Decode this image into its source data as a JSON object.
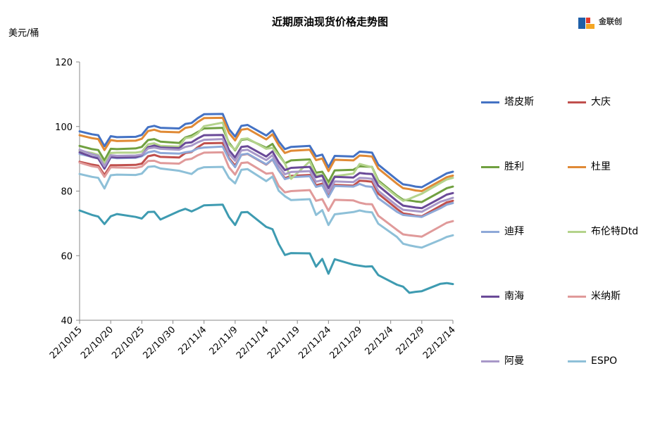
{
  "title": "近期原油现货价格走势图",
  "logo": {
    "name": "金联创"
  },
  "chart_data": {
    "type": "line",
    "title": "近期原油现货价格走势图",
    "ylabel": "美元/桶",
    "xlabel": "",
    "ylim": [
      40,
      120
    ],
    "yticks": [
      40,
      60,
      80,
      100,
      120
    ],
    "grid": false,
    "legend_position": "right",
    "x": [
      "22/10/15",
      "22/10/17",
      "22/10/18",
      "22/10/19",
      "22/10/20",
      "22/10/21",
      "22/10/24",
      "22/10/25",
      "22/10/26",
      "22/10/27",
      "22/10/28",
      "22/10/31",
      "22/11/1",
      "22/11/2",
      "22/11/3",
      "22/11/4",
      "22/11/7",
      "22/11/8",
      "22/11/9",
      "22/11/10",
      "22/11/11",
      "22/11/14",
      "22/11/15",
      "22/11/16",
      "22/11/17",
      "22/11/18",
      "22/11/21",
      "22/11/22",
      "22/11/23",
      "22/11/24",
      "22/11/25",
      "22/11/28",
      "22/11/29",
      "22/11/30",
      "22/12/1",
      "22/12/2",
      "22/12/5",
      "22/12/6",
      "22/12/7",
      "22/12/8",
      "22/12/9",
      "22/12/12",
      "22/12/13",
      "22/12/14"
    ],
    "xticks": [
      "22/10/15",
      "22/10/20",
      "22/10/25",
      "22/10/30",
      "22/11/4",
      "22/11/9",
      "22/11/14",
      "22/11/19",
      "22/11/24",
      "22/11/29",
      "22/12/4",
      "22/12/9",
      "22/12/14"
    ],
    "series": [
      {
        "name": "塔皮斯",
        "color": "#4472c4",
        "values": [
          98.5,
          97.6,
          97.3,
          93.9,
          97.0,
          96.7,
          96.8,
          97.4,
          99.8,
          100.2,
          99.6,
          99.4,
          100.8,
          101.1,
          102.6,
          103.8,
          103.9,
          99.2,
          96.9,
          100.2,
          100.5,
          97.2,
          98.8,
          95.4,
          93.0,
          93.7,
          94.0,
          90.8,
          91.3,
          87.4,
          90.9,
          90.7,
          92.2,
          92.1,
          91.9,
          88.2,
          83.5,
          82.1,
          81.8,
          81.4,
          81.2,
          84.4,
          85.5,
          86.0
        ]
      },
      {
        "name": "大庆",
        "color": "#c0504d",
        "values": [
          89.1,
          88.2,
          87.9,
          85.0,
          88.0,
          88.0,
          88.1,
          88.5,
          90.8,
          91.2,
          90.6,
          90.4,
          91.8,
          92.1,
          93.6,
          94.8,
          94.9,
          90.2,
          87.9,
          91.2,
          91.5,
          88.2,
          89.8,
          86.4,
          84.0,
          84.7,
          85.0,
          81.8,
          82.3,
          78.4,
          81.9,
          81.7,
          83.2,
          83.1,
          82.9,
          79.2,
          74.5,
          73.1,
          72.8,
          72.4,
          72.2,
          75.4,
          76.5,
          77.0
        ]
      },
      {
        "name": "胜利",
        "color": "#70a040",
        "values": [
          94.0,
          93.0,
          92.7,
          89.5,
          93.1,
          93.0,
          93.2,
          93.7,
          95.8,
          96.1,
          95.3,
          94.9,
          96.6,
          97.2,
          98.3,
          99.4,
          99.6,
          95.0,
          92.6,
          95.9,
          96.1,
          93.4,
          94.6,
          91.4,
          88.6,
          89.5,
          89.8,
          85.7,
          86.0,
          82.8,
          86.4,
          86.6,
          87.7,
          87.6,
          87.5,
          83.3,
          78.6,
          77.3,
          77.1,
          76.8,
          76.6,
          79.8,
          80.9,
          81.4
        ]
      },
      {
        "name": "杜里",
        "color": "#e08a36",
        "values": [
          97.3,
          96.4,
          96.1,
          92.7,
          95.8,
          95.5,
          95.6,
          96.2,
          98.6,
          99.0,
          98.4,
          98.2,
          99.6,
          99.9,
          101.4,
          102.6,
          102.7,
          98.0,
          95.7,
          99.0,
          99.3,
          96.0,
          97.6,
          94.2,
          91.8,
          92.5,
          92.8,
          89.6,
          90.1,
          86.2,
          89.7,
          89.5,
          91.0,
          90.9,
          90.7,
          87.0,
          82.3,
          80.9,
          80.6,
          80.2,
          80.0,
          83.2,
          84.3,
          84.8
        ]
      },
      {
        "name": "迪拜",
        "color": "#8ea9d8",
        "values": [
          91.5,
          90.6,
          90.3,
          86.9,
          90.4,
          90.2,
          90.3,
          90.8,
          92.0,
          92.4,
          91.8,
          91.6,
          92.0,
          92.3,
          93.2,
          93.5,
          93.8,
          89.9,
          87.4,
          91.3,
          91.6,
          88.3,
          89.9,
          86.4,
          83.7,
          84.3,
          84.6,
          81.3,
          81.8,
          78.1,
          81.6,
          81.4,
          82.2,
          81.5,
          81.3,
          77.8,
          73.6,
          72.6,
          72.4,
          72.2,
          72.0,
          74.7,
          75.8,
          76.3
        ]
      },
      {
        "name": "布伦特Dtd",
        "color": "#b4d38c",
        "values": [
          92.5,
          91.8,
          91.2,
          88.5,
          91.8,
          91.9,
          91.9,
          92.2,
          94.5,
          94.8,
          94.0,
          93.8,
          96.4,
          96.7,
          97.9,
          100.1,
          101.2,
          94.5,
          92.8,
          96.1,
          96.3,
          93.1,
          93.4,
          91.0,
          88.6,
          83.8,
          89.2,
          84.8,
          85.1,
          81.8,
          84.6,
          85.4,
          88.4,
          87.9,
          87.4,
          82.9,
          78.3,
          77.0,
          77.6,
          78.4,
          79.2,
          82.5,
          83.6,
          84.1
        ]
      },
      {
        "name": "南海",
        "color": "#6a4a98",
        "values": [
          92.0,
          90.6,
          90.1,
          87.0,
          90.6,
          90.4,
          90.5,
          91.1,
          93.6,
          94.1,
          93.5,
          93.3,
          94.9,
          95.1,
          96.3,
          97.3,
          97.4,
          92.7,
          90.4,
          93.7,
          93.9,
          90.7,
          92.3,
          88.9,
          86.5,
          87.2,
          87.5,
          84.3,
          84.8,
          80.9,
          84.4,
          84.2,
          85.6,
          85.4,
          85.3,
          81.7,
          76.9,
          75.5,
          75.2,
          74.9,
          74.7,
          77.8,
          78.9,
          79.4
        ]
      },
      {
        "name": "米纳斯",
        "color": "#e09a9a",
        "values": [
          88.8,
          87.7,
          87.4,
          84.4,
          87.4,
          87.3,
          87.2,
          87.6,
          89.3,
          89.4,
          88.7,
          88.5,
          89.7,
          90.0,
          91.1,
          91.9,
          92.0,
          87.4,
          85.1,
          88.7,
          88.9,
          85.4,
          85.6,
          81.6,
          79.6,
          80.0,
          80.3,
          77.0,
          77.5,
          73.9,
          77.3,
          77.1,
          76.4,
          76.0,
          75.9,
          72.4,
          68.0,
          66.6,
          66.3,
          66.1,
          65.9,
          69.1,
          70.2,
          70.7
        ]
      },
      {
        "name": "阿曼",
        "color": "#a898c8",
        "values": [
          92.8,
          91.4,
          90.9,
          87.7,
          91.1,
          90.9,
          91.0,
          91.3,
          93.2,
          93.5,
          93.1,
          92.8,
          93.7,
          94.1,
          95.1,
          95.9,
          96.1,
          91.6,
          89.4,
          92.6,
          92.8,
          89.6,
          91.1,
          87.7,
          85.2,
          85.9,
          86.2,
          82.9,
          83.4,
          79.6,
          83.0,
          82.8,
          84.1,
          84.0,
          83.8,
          80.1,
          75.5,
          74.2,
          74.0,
          73.8,
          73.6,
          76.7,
          77.3,
          77.9
        ]
      },
      {
        "name": "ESPO",
        "color": "#8ec0d8",
        "values": [
          85.3,
          84.4,
          84.1,
          80.8,
          84.9,
          85.1,
          85.0,
          85.4,
          87.5,
          87.7,
          87.0,
          86.3,
          85.8,
          85.3,
          86.8,
          87.4,
          87.5,
          84.1,
          82.4,
          86.6,
          86.8,
          83.1,
          84.5,
          80.1,
          78.4,
          77.2,
          77.5,
          72.6,
          74.1,
          69.5,
          72.8,
          73.5,
          74.0,
          73.6,
          73.4,
          69.9,
          65.8,
          63.7,
          63.2,
          62.8,
          62.5,
          64.9,
          65.8,
          66.3
        ]
      },
      {
        "name": "",
        "color": "#3e9bb1",
        "values": [
          74.0,
          72.6,
          72.1,
          69.8,
          72.2,
          72.9,
          72.0,
          71.5,
          73.5,
          73.6,
          71.2,
          73.8,
          74.5,
          73.7,
          74.6,
          75.6,
          75.8,
          72.0,
          69.5,
          73.4,
          73.5,
          68.9,
          68.2,
          63.6,
          60.2,
          60.8,
          60.7,
          56.6,
          59.0,
          54.4,
          58.9,
          57.2,
          56.9,
          56.6,
          56.7,
          54.0,
          51.0,
          50.4,
          48.5,
          48.8,
          49.0,
          51.3,
          51.5,
          51.2
        ]
      }
    ]
  }
}
